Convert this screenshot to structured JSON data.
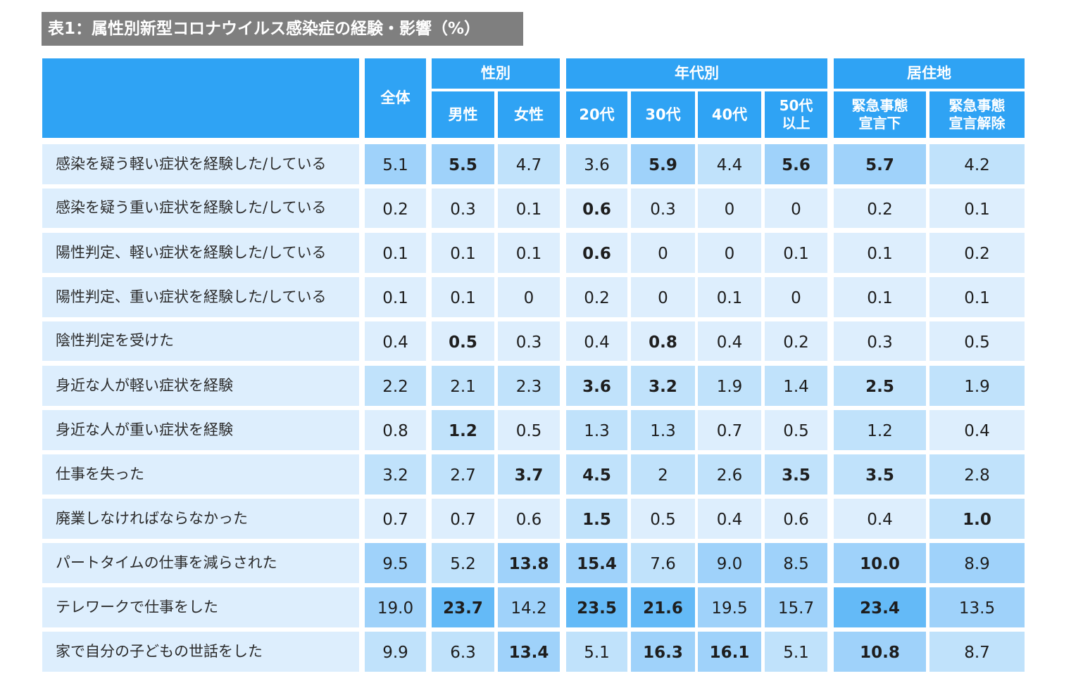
{
  "title": "表1：属性別新型コロナウイルス感染症の経験・影響（%）",
  "header": {
    "total": "全体",
    "groups": {
      "gender": "性別",
      "age": "年代別",
      "residence": "居住地"
    },
    "columns": [
      "男性",
      "女性",
      "20代",
      "30代",
      "40代",
      "50代\n以上",
      "緊急事態\n宣言下",
      "緊急事態\n宣言解除"
    ]
  },
  "colors": {
    "header_bg": "#2fa3f4",
    "title_bg": "#7f7f7f",
    "level_1": "#ddeefd",
    "level_2": "#c0e2fb",
    "level_3": "#9fd2fa",
    "level_4": "#64baf7"
  },
  "rows": [
    {
      "label": "感染を疑う軽い症状を経験した/している",
      "cells": [
        {
          "v": "5.1",
          "b": false,
          "lvl": 3
        },
        {
          "v": "5.5",
          "b": true,
          "lvl": 3
        },
        {
          "v": "4.7",
          "b": false,
          "lvl": 2
        },
        {
          "v": "3.6",
          "b": false,
          "lvl": 2
        },
        {
          "v": "5.9",
          "b": true,
          "lvl": 3
        },
        {
          "v": "4.4",
          "b": false,
          "lvl": 2
        },
        {
          "v": "5.6",
          "b": true,
          "lvl": 3
        },
        {
          "v": "5.7",
          "b": true,
          "lvl": 3
        },
        {
          "v": "4.2",
          "b": false,
          "lvl": 2
        }
      ]
    },
    {
      "label": "感染を疑う重い症状を経験した/している",
      "cells": [
        {
          "v": "0.2",
          "b": false,
          "lvl": 1
        },
        {
          "v": "0.3",
          "b": false,
          "lvl": 1
        },
        {
          "v": "0.1",
          "b": false,
          "lvl": 1
        },
        {
          "v": "0.6",
          "b": true,
          "lvl": 1
        },
        {
          "v": "0.3",
          "b": false,
          "lvl": 1
        },
        {
          "v": "0",
          "b": false,
          "lvl": 1
        },
        {
          "v": "0",
          "b": false,
          "lvl": 1
        },
        {
          "v": "0.2",
          "b": false,
          "lvl": 1
        },
        {
          "v": "0.1",
          "b": false,
          "lvl": 1
        }
      ]
    },
    {
      "label": "陽性判定、軽い症状を経験した/している",
      "cells": [
        {
          "v": "0.1",
          "b": false,
          "lvl": 1
        },
        {
          "v": "0.1",
          "b": false,
          "lvl": 1
        },
        {
          "v": "0.1",
          "b": false,
          "lvl": 1
        },
        {
          "v": "0.6",
          "b": true,
          "lvl": 1
        },
        {
          "v": "0",
          "b": false,
          "lvl": 1
        },
        {
          "v": "0",
          "b": false,
          "lvl": 1
        },
        {
          "v": "0.1",
          "b": false,
          "lvl": 1
        },
        {
          "v": "0.1",
          "b": false,
          "lvl": 1
        },
        {
          "v": "0.2",
          "b": false,
          "lvl": 1
        }
      ]
    },
    {
      "label": "陽性判定、重い症状を経験した/している",
      "cells": [
        {
          "v": "0.1",
          "b": false,
          "lvl": 1
        },
        {
          "v": "0.1",
          "b": false,
          "lvl": 1
        },
        {
          "v": "0",
          "b": false,
          "lvl": 1
        },
        {
          "v": "0.2",
          "b": false,
          "lvl": 1
        },
        {
          "v": "0",
          "b": false,
          "lvl": 1
        },
        {
          "v": "0.1",
          "b": false,
          "lvl": 1
        },
        {
          "v": "0",
          "b": false,
          "lvl": 1
        },
        {
          "v": "0.1",
          "b": false,
          "lvl": 1
        },
        {
          "v": "0.1",
          "b": false,
          "lvl": 1
        }
      ]
    },
    {
      "label": "陰性判定を受けた",
      "cells": [
        {
          "v": "0.4",
          "b": false,
          "lvl": 1
        },
        {
          "v": "0.5",
          "b": true,
          "lvl": 1
        },
        {
          "v": "0.3",
          "b": false,
          "lvl": 1
        },
        {
          "v": "0.4",
          "b": false,
          "lvl": 1
        },
        {
          "v": "0.8",
          "b": true,
          "lvl": 1
        },
        {
          "v": "0.4",
          "b": false,
          "lvl": 1
        },
        {
          "v": "0.2",
          "b": false,
          "lvl": 1
        },
        {
          "v": "0.3",
          "b": false,
          "lvl": 1
        },
        {
          "v": "0.5",
          "b": false,
          "lvl": 1
        }
      ]
    },
    {
      "label": "身近な人が軽い症状を経験",
      "cells": [
        {
          "v": "2.2",
          "b": false,
          "lvl": 2
        },
        {
          "v": "2.1",
          "b": false,
          "lvl": 2
        },
        {
          "v": "2.3",
          "b": false,
          "lvl": 2
        },
        {
          "v": "3.6",
          "b": true,
          "lvl": 2
        },
        {
          "v": "3.2",
          "b": true,
          "lvl": 2
        },
        {
          "v": "1.9",
          "b": false,
          "lvl": 2
        },
        {
          "v": "1.4",
          "b": false,
          "lvl": 2
        },
        {
          "v": "2.5",
          "b": true,
          "lvl": 2
        },
        {
          "v": "1.9",
          "b": false,
          "lvl": 2
        }
      ]
    },
    {
      "label": "身近な人が重い症状を経験",
      "cells": [
        {
          "v": "0.8",
          "b": false,
          "lvl": 1
        },
        {
          "v": "1.2",
          "b": true,
          "lvl": 2
        },
        {
          "v": "0.5",
          "b": false,
          "lvl": 1
        },
        {
          "v": "1.3",
          "b": false,
          "lvl": 2
        },
        {
          "v": "1.3",
          "b": false,
          "lvl": 2
        },
        {
          "v": "0.7",
          "b": false,
          "lvl": 1
        },
        {
          "v": "0.5",
          "b": false,
          "lvl": 1
        },
        {
          "v": "1.2",
          "b": false,
          "lvl": 2
        },
        {
          "v": "0.4",
          "b": false,
          "lvl": 1
        }
      ]
    },
    {
      "label": "仕事を失った",
      "cells": [
        {
          "v": "3.2",
          "b": false,
          "lvl": 2
        },
        {
          "v": "2.7",
          "b": false,
          "lvl": 2
        },
        {
          "v": "3.7",
          "b": true,
          "lvl": 2
        },
        {
          "v": "4.5",
          "b": true,
          "lvl": 2
        },
        {
          "v": "2",
          "b": false,
          "lvl": 2
        },
        {
          "v": "2.6",
          "b": false,
          "lvl": 2
        },
        {
          "v": "3.5",
          "b": true,
          "lvl": 2
        },
        {
          "v": "3.5",
          "b": true,
          "lvl": 2
        },
        {
          "v": "2.8",
          "b": false,
          "lvl": 2
        }
      ]
    },
    {
      "label": "廃業しなければならなかった",
      "cells": [
        {
          "v": "0.7",
          "b": false,
          "lvl": 1
        },
        {
          "v": "0.7",
          "b": false,
          "lvl": 1
        },
        {
          "v": "0.6",
          "b": false,
          "lvl": 1
        },
        {
          "v": "1.5",
          "b": true,
          "lvl": 2
        },
        {
          "v": "0.5",
          "b": false,
          "lvl": 1
        },
        {
          "v": "0.4",
          "b": false,
          "lvl": 1
        },
        {
          "v": "0.6",
          "b": false,
          "lvl": 1
        },
        {
          "v": "0.4",
          "b": false,
          "lvl": 1
        },
        {
          "v": "1.0",
          "b": true,
          "lvl": 2
        }
      ]
    },
    {
      "label": "パートタイムの仕事を減らされた",
      "cells": [
        {
          "v": "9.5",
          "b": false,
          "lvl": 3
        },
        {
          "v": "5.2",
          "b": false,
          "lvl": 2
        },
        {
          "v": "13.8",
          "b": true,
          "lvl": 3
        },
        {
          "v": "15.4",
          "b": true,
          "lvl": 3
        },
        {
          "v": "7.6",
          "b": false,
          "lvl": 2
        },
        {
          "v": "9.0",
          "b": false,
          "lvl": 3
        },
        {
          "v": "8.5",
          "b": false,
          "lvl": 3
        },
        {
          "v": "10.0",
          "b": true,
          "lvl": 3
        },
        {
          "v": "8.9",
          "b": false,
          "lvl": 3
        }
      ]
    },
    {
      "label": "テレワークで仕事をした",
      "cells": [
        {
          "v": "19.0",
          "b": false,
          "lvl": 3
        },
        {
          "v": "23.7",
          "b": true,
          "lvl": 4
        },
        {
          "v": "14.2",
          "b": false,
          "lvl": 3
        },
        {
          "v": "23.5",
          "b": true,
          "lvl": 4
        },
        {
          "v": "21.6",
          "b": true,
          "lvl": 4
        },
        {
          "v": "19.5",
          "b": false,
          "lvl": 3
        },
        {
          "v": "15.7",
          "b": false,
          "lvl": 3
        },
        {
          "v": "23.4",
          "b": true,
          "lvl": 4
        },
        {
          "v": "13.5",
          "b": false,
          "lvl": 3
        }
      ]
    },
    {
      "label": "家で自分の子どもの世話をした",
      "cells": [
        {
          "v": "9.9",
          "b": false,
          "lvl": 2
        },
        {
          "v": "6.3",
          "b": false,
          "lvl": 2
        },
        {
          "v": "13.4",
          "b": true,
          "lvl": 3
        },
        {
          "v": "5.1",
          "b": false,
          "lvl": 2
        },
        {
          "v": "16.3",
          "b": true,
          "lvl": 3
        },
        {
          "v": "16.1",
          "b": true,
          "lvl": 3
        },
        {
          "v": "5.1",
          "b": false,
          "lvl": 2
        },
        {
          "v": "10.8",
          "b": true,
          "lvl": 3
        },
        {
          "v": "8.7",
          "b": false,
          "lvl": 2
        }
      ]
    }
  ]
}
